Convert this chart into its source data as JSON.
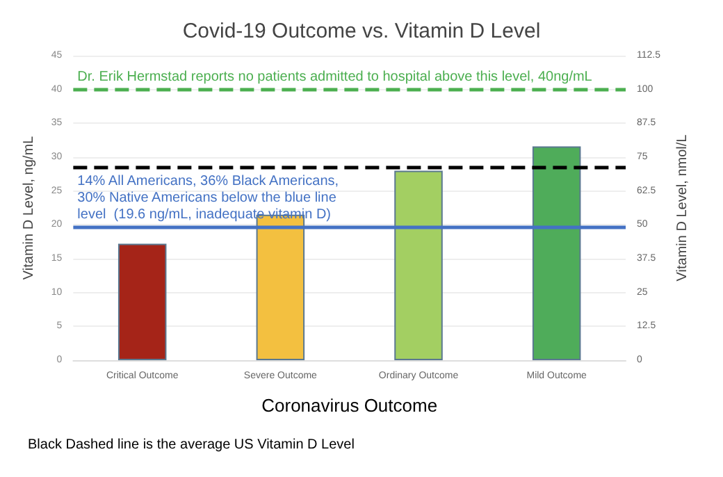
{
  "chart_data": {
    "type": "bar",
    "title": "Covid-19 Outcome vs. Vitamin D Level",
    "categories": [
      "Critical Outcome",
      "Severe Outcome",
      "Ordinary Outcome",
      "Mild Outcome"
    ],
    "values": [
      17.2,
      21.5,
      28,
      31.6
    ],
    "colors": [
      "#a52418",
      "#f3c040",
      "#a3cf62",
      "#4fac5a"
    ],
    "xlabel": "Coronavirus Outcome",
    "ylabel": "Vitamin D Level, ng/mL",
    "y2label": "Vitamin D Level, nmol/L",
    "ylim": [
      0,
      45
    ],
    "yticks": [
      0,
      5,
      10,
      15,
      20,
      25,
      30,
      35,
      40,
      45
    ],
    "y2lim": [
      0,
      112.5
    ],
    "y2ticks": [
      0,
      12.5,
      25,
      37.5,
      50,
      62.5,
      75,
      87.5,
      100,
      112.5
    ],
    "ref_lines": [
      {
        "axis": "y",
        "value": 40,
        "label": "Dr. Erik Hermstad reports no patients admitted to hospital above this level, 40ng/mL",
        "color": "#4caf50",
        "line_style": "dashed"
      },
      {
        "axis": "y",
        "value": 28.6,
        "color": "#000000",
        "line_style": "dashed"
      },
      {
        "axis": "y",
        "value": 19.6,
        "label": "14% All Americans, 36% Black Americans,\n30% Native Americans below the blue line\nlevel  (19.6 ng/mL, inadequate vitamin D)",
        "color": "#4472c4",
        "line_style": "solid"
      }
    ],
    "annotations": [
      "Black Dashed line is the average US Vitamin D Level"
    ],
    "grid": "y"
  }
}
